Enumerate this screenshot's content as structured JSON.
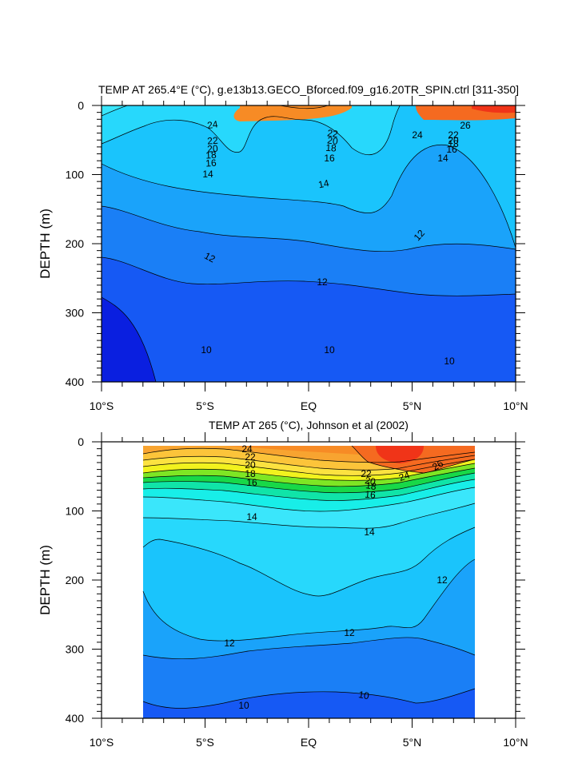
{
  "chart_data": [
    {
      "type": "contour",
      "title": "TEMP AT 265.4°E (°C), g.e13b13.GECO_Bforced.f09_g16.20TR_SPIN.ctrl [311-350]",
      "ylabel": "DEPTH (m)",
      "xlabel": "",
      "xlim": [
        -10,
        10
      ],
      "ylim": [
        400,
        0
      ],
      "x_ticks": [
        "10°S",
        "5°S",
        "EQ",
        "5°N",
        "10°N"
      ],
      "y_ticks": [
        "0",
        "100",
        "200",
        "300",
        "400"
      ],
      "data_xrange": [
        -10,
        10
      ],
      "contour_labels": [
        "24",
        "22",
        "20",
        "18",
        "16",
        "14",
        "22",
        "20",
        "18",
        "16",
        "24",
        "26",
        "22",
        "20",
        "18",
        "16",
        "14",
        "14",
        "12",
        "12",
        "12",
        "10",
        "10",
        "10"
      ]
    },
    {
      "type": "contour",
      "title": "TEMP AT 265 (°C), Johnson et al (2002)",
      "ylabel": "DEPTH (m)",
      "xlabel": "",
      "xlim": [
        -10,
        10
      ],
      "ylim": [
        400,
        0
      ],
      "x_ticks": [
        "10°S",
        "5°S",
        "EQ",
        "5°N",
        "10°N"
      ],
      "y_ticks": [
        "0",
        "100",
        "200",
        "300",
        "400"
      ],
      "data_xrange": [
        -8,
        8
      ],
      "contour_labels": [
        "24",
        "22",
        "20",
        "18",
        "16",
        "14",
        "22",
        "20",
        "18",
        "16",
        "24",
        "26",
        "14",
        "12",
        "12",
        "12",
        "10",
        "10"
      ]
    }
  ],
  "colors": {
    "bands": [
      "#0a1fe0",
      "#1659f4",
      "#1a7ff6",
      "#1aa3fa",
      "#1ac4fc",
      "#27d8fc",
      "#3ae6fb",
      "#18eee8",
      "#10e4a8",
      "#18d848",
      "#7ee624",
      "#f2f21e",
      "#fce240",
      "#fcc43a",
      "#f8a430",
      "#f78b25",
      "#f56a20",
      "#f03418"
    ]
  }
}
